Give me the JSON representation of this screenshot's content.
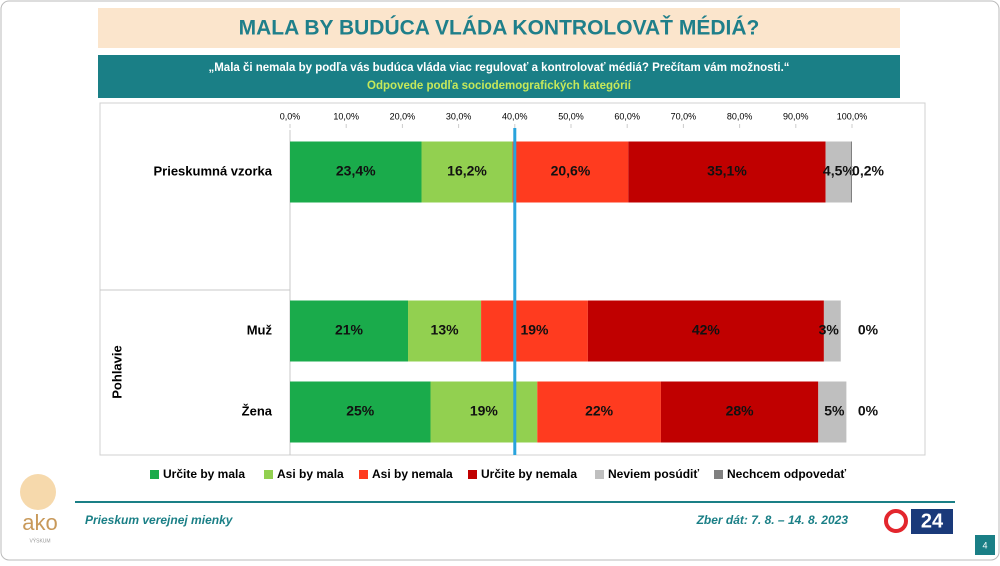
{
  "chart_data": {
    "type": "stacked-bar-horizontal",
    "title": "MALA BY BUDÚCA VLÁDA KONTROLOVAŤ MÉDIÁ?",
    "subtitle": "„Mala či nemala by podľa vás budúca vláda viac regulovať a kontrolovať médiá? Prečítam vám možnosti.“",
    "subtitle2": "Odpovede podľa sociodemografických kategórií",
    "categories": [
      "Prieskumná vzorka",
      "Muž",
      "Žena"
    ],
    "group_label": "Pohlavie",
    "xlim": [
      0,
      100
    ],
    "xticks": [
      {
        "value": 0,
        "label": "0,0%"
      },
      {
        "value": 10,
        "label": "10,0%"
      },
      {
        "value": 20,
        "label": "20,0%"
      },
      {
        "value": 30,
        "label": "30,0%"
      },
      {
        "value": 40,
        "label": "40,0%"
      },
      {
        "value": 50,
        "label": "50,0%"
      },
      {
        "value": 60,
        "label": "60,0%"
      },
      {
        "value": 70,
        "label": "70,0%"
      },
      {
        "value": 80,
        "label": "80,0%"
      },
      {
        "value": 90,
        "label": "90,0%"
      },
      {
        "value": 100,
        "label": "100,0%"
      }
    ],
    "reference_line": {
      "value": 40,
      "color": "#29a3dc"
    },
    "legend": "bottom",
    "series": [
      {
        "name": "Určite by mala",
        "color": "#1aab4b",
        "values": [
          23.4,
          21,
          25
        ],
        "value_labels": [
          "23,4%",
          "21%",
          "25%"
        ]
      },
      {
        "name": "Asi by mala",
        "color": "#92d050",
        "values": [
          16.2,
          13,
          19
        ],
        "value_labels": [
          "16,2%",
          "13%",
          "19%"
        ]
      },
      {
        "name": "Asi by nemala",
        "color": "#ff3b1f",
        "values": [
          20.6,
          19,
          22
        ],
        "value_labels": [
          "20,6%",
          "19%",
          "22%"
        ]
      },
      {
        "name": "Určite by nemala",
        "color": "#c00000",
        "values": [
          35.1,
          42,
          28
        ],
        "value_labels": [
          "35,1%",
          "42%",
          "28%"
        ]
      },
      {
        "name": "Neviem posúdiť",
        "color": "#bfbfbf",
        "values": [
          4.5,
          3,
          5
        ],
        "value_labels": [
          "4,5%",
          "3%",
          "5%"
        ]
      },
      {
        "name": "Nechcem odpovedať",
        "color": "#808080",
        "values": [
          0.2,
          0,
          0
        ],
        "value_labels": [
          "0,2%",
          "0%",
          "0%"
        ]
      }
    ]
  },
  "footer": {
    "survey": "Prieskum verejnej mienky",
    "dates": "Zber dát: 7. 8. – 14. 8. 2023",
    "logo": "ako",
    "logo_tagline": "VÝSKUM",
    "tv_logo": "24",
    "page": "4"
  }
}
